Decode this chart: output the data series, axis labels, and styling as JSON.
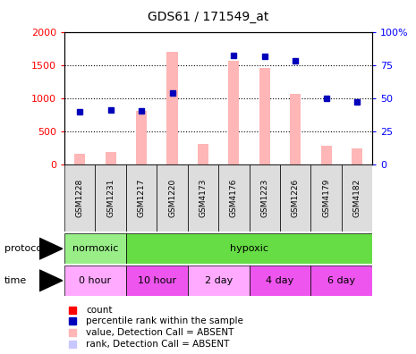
{
  "title": "GDS61 / 171549_at",
  "samples": [
    "GSM1228",
    "GSM1231",
    "GSM1217",
    "GSM1220",
    "GSM4173",
    "GSM4176",
    "GSM1223",
    "GSM1226",
    "GSM4179",
    "GSM4182"
  ],
  "bar_values": [
    160,
    185,
    810,
    1700,
    310,
    1560,
    1460,
    1060,
    285,
    240
  ],
  "rank_values": [
    800,
    820,
    810,
    1080,
    null,
    1650,
    1630,
    1560,
    1005,
    945
  ],
  "bar_absent": [
    true,
    true,
    true,
    true,
    true,
    true,
    true,
    true,
    true,
    true
  ],
  "rank_absent": [
    false,
    false,
    false,
    false,
    true,
    false,
    false,
    false,
    false,
    false
  ],
  "ylim_left": [
    0,
    2000
  ],
  "ylim_right": [
    0,
    100
  ],
  "yticks_left": [
    0,
    500,
    1000,
    1500,
    2000
  ],
  "yticks_right": [
    0,
    25,
    50,
    75,
    100
  ],
  "left_tick_labels": [
    "0",
    "500",
    "1000",
    "1500",
    "2000"
  ],
  "right_tick_labels": [
    "0",
    "25",
    "50",
    "75",
    "100%"
  ],
  "bar_color_absent": "#FFB6B6",
  "rank_color_absent": "#C8C8FF",
  "bar_color_present": "#FF0000",
  "rank_color_present": "#0000BB",
  "protocol_groups": [
    {
      "label": "normoxic",
      "start": 0,
      "end": 2,
      "color": "#99EE88"
    },
    {
      "label": "hypoxic",
      "start": 2,
      "end": 10,
      "color": "#66DD44"
    }
  ],
  "time_groups": [
    {
      "label": "0 hour",
      "start": 0,
      "end": 2,
      "color": "#FFAAFF"
    },
    {
      "label": "10 hour",
      "start": 2,
      "end": 4,
      "color": "#EE55EE"
    },
    {
      "label": "2 day",
      "start": 4,
      "end": 6,
      "color": "#FFAAFF"
    },
    {
      "label": "4 day",
      "start": 6,
      "end": 8,
      "color": "#EE55EE"
    },
    {
      "label": "6 day",
      "start": 8,
      "end": 10,
      "color": "#EE55EE"
    }
  ],
  "legend_items": [
    {
      "label": "count",
      "color": "#FF0000"
    },
    {
      "label": "percentile rank within the sample",
      "color": "#0000BB"
    },
    {
      "label": "value, Detection Call = ABSENT",
      "color": "#FFB6B6"
    },
    {
      "label": "rank, Detection Call = ABSENT",
      "color": "#C8C8FF"
    }
  ],
  "bar_width": 0.35,
  "sample_label_color": "#CCCCCC",
  "grid_color": "#000000"
}
